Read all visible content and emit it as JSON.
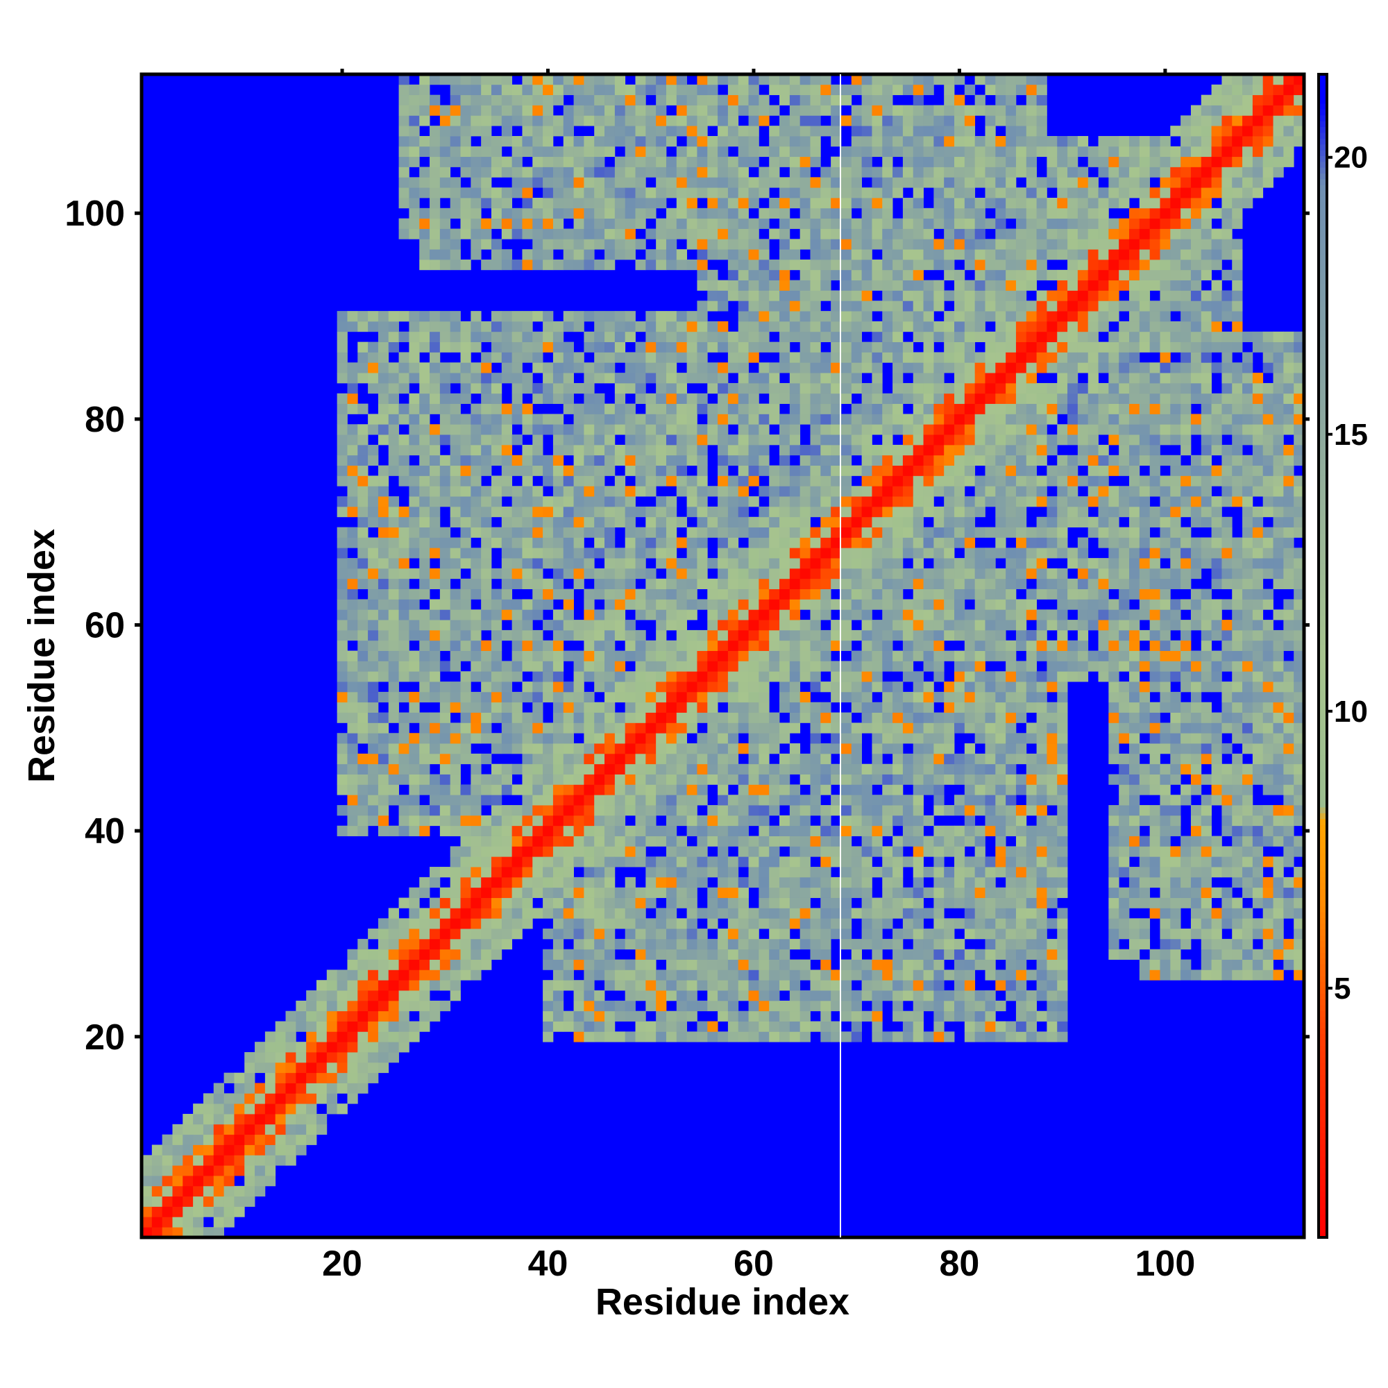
{
  "chart_data": {
    "type": "heatmap",
    "title": "",
    "xlabel": "Residue index",
    "ylabel": "Residue index",
    "n_residues": 113,
    "xlim": [
      0.5,
      113.5
    ],
    "ylim": [
      0.5,
      113.5
    ],
    "x_ticks": [
      20,
      40,
      60,
      80,
      100
    ],
    "y_ticks": [
      20,
      40,
      60,
      80,
      100
    ],
    "colorbar": {
      "range": [
        0.5,
        21.5
      ],
      "ticks": [
        5,
        10,
        15,
        20
      ],
      "stops": [
        {
          "value": 0.5,
          "color": "#ff0000"
        },
        {
          "value": 4.0,
          "color": "#ff3a00"
        },
        {
          "value": 6.5,
          "color": "#ff8a00"
        },
        {
          "value": 8.0,
          "color": "#ffa500"
        },
        {
          "value": 8.3,
          "color": "#9bbd8f"
        },
        {
          "value": 11.0,
          "color": "#a7c48e"
        },
        {
          "value": 15.0,
          "color": "#8eaa9e"
        },
        {
          "value": 19.5,
          "color": "#6f8fb2"
        },
        {
          "value": 21.0,
          "color": "#0000ff"
        }
      ],
      "background_color": "#0000ff"
    },
    "matrix_description_values": {
      "diagonal_value": 1,
      "contact_cutoff": 21,
      "contact_regions": [
        {
          "x": [
            1,
            113
          ],
          "y": [
            1,
            113
          ],
          "kind": "diagonal_band",
          "half_width": 8
        },
        {
          "x": [
            26,
            88
          ],
          "y": [
            98,
            113
          ],
          "kind": "domain_block"
        },
        {
          "x": [
            20,
            70
          ],
          "y": [
            40,
            90
          ],
          "kind": "domain_block"
        },
        {
          "x": [
            55,
            105
          ],
          "y": [
            60,
            100
          ],
          "kind": "domain_block"
        },
        {
          "x": [
            45,
            85
          ],
          "y": [
            20,
            50
          ],
          "kind": "domain_block"
        },
        {
          "x": [
            95,
            113
          ],
          "y": [
            28,
            65
          ],
          "kind": "domain_block"
        },
        {
          "x": [
            84,
            102
          ],
          "y": [
            88,
            107
          ],
          "kind": "orange_contacts_antiparallel"
        }
      ]
    }
  }
}
